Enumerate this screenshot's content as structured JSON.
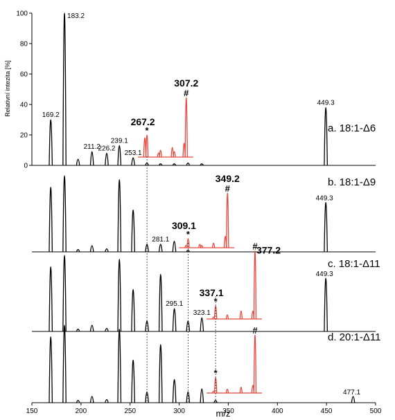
{
  "chart_data": {
    "type": "line",
    "xlabel": "m/z",
    "ylabel": "Relativní intezita [%]",
    "xlim": [
      150,
      500
    ],
    "ylim": [
      0,
      100
    ],
    "x_ticks": [
      "150",
      "200",
      "250",
      "300",
      "350",
      "400",
      "450",
      "500"
    ],
    "y_ticks": [
      "0",
      "20",
      "40",
      "60",
      "80",
      "100"
    ],
    "colors": {
      "main": "#000000",
      "inset": "#e8473c"
    },
    "series": [
      {
        "name": "a. 18:1-Δ6",
        "peaks": [
          [
            169.2,
            30
          ],
          [
            183.2,
            100
          ],
          [
            197,
            4
          ],
          [
            211.2,
            9
          ],
          [
            226.2,
            8
          ],
          [
            239.1,
            13
          ],
          [
            253.1,
            5
          ],
          [
            267.2,
            1.5
          ],
          [
            281,
            1
          ],
          [
            295,
            1
          ],
          [
            309,
            1.5
          ],
          [
            323,
            1
          ],
          [
            449.3,
            38
          ]
        ],
        "labels": [
          {
            "x": 169.2,
            "text": "169.2"
          },
          {
            "x": 183.2,
            "text": "183.2"
          },
          {
            "x": 211.2,
            "text": "211.2"
          },
          {
            "x": 226.2,
            "text": "226.2"
          },
          {
            "x": 239.1,
            "text": "239.1"
          },
          {
            "x": 253.1,
            "text": "253.1"
          },
          {
            "x": 449.3,
            "text": "449.3"
          }
        ],
        "inset": {
          "peaks": [
            [
              265,
              14
            ],
            [
              267.2,
              16
            ],
            [
              279,
              3
            ],
            [
              281,
              5
            ],
            [
              293,
              7
            ],
            [
              295,
              4
            ],
            [
              305,
              10
            ],
            [
              307.2,
              43
            ]
          ],
          "star": {
            "x": 267.2,
            "text": "267.2"
          },
          "hash": {
            "x": 307.2,
            "text": "307.2"
          }
        }
      },
      {
        "name": "b. 18:1-Δ9",
        "peaks": [
          [
            169.2,
            85
          ],
          [
            183.2,
            100
          ],
          [
            197,
            3
          ],
          [
            211.2,
            8
          ],
          [
            226.2,
            4
          ],
          [
            239.1,
            95
          ],
          [
            253.1,
            55
          ],
          [
            267.2,
            10
          ],
          [
            281.1,
            10
          ],
          [
            295,
            14
          ],
          [
            309,
            2
          ],
          [
            449.3,
            65
          ]
        ],
        "labels": [
          {
            "x": 281.1,
            "text": "281.1"
          },
          {
            "x": 449.3,
            "text": "449.3"
          }
        ],
        "inset": {
          "peaks": [
            [
              307,
              2
            ],
            [
              309.1,
              8
            ],
            [
              321,
              3
            ],
            [
              323,
              2
            ],
            [
              335,
              4
            ],
            [
              347,
              10
            ],
            [
              349.2,
              48
            ]
          ],
          "star": {
            "x": 309.1,
            "text": "309.1"
          },
          "hash": {
            "x": 349.2,
            "text": "349.2"
          }
        }
      },
      {
        "name": "c. 18:1-Δ11",
        "peaks": [
          [
            169.2,
            85
          ],
          [
            183.2,
            100
          ],
          [
            197,
            3
          ],
          [
            211.2,
            8
          ],
          [
            226.2,
            4
          ],
          [
            239.1,
            95
          ],
          [
            253.1,
            55
          ],
          [
            267.2,
            14
          ],
          [
            281.1,
            75
          ],
          [
            295.1,
            30
          ],
          [
            309,
            14
          ],
          [
            323.1,
            18
          ],
          [
            449.3,
            70
          ]
        ],
        "labels": [
          {
            "x": 295.1,
            "text": "295.1"
          },
          {
            "x": 323.1,
            "text": "323.1"
          },
          {
            "x": 449.3,
            "text": "449.3"
          }
        ],
        "inset": {
          "peaks": [
            [
              335,
              2
            ],
            [
              337.1,
              13
            ],
            [
              349,
              4
            ],
            [
              363,
              8
            ],
            [
              375,
              8
            ],
            [
              377.2,
              68
            ]
          ],
          "star": {
            "x": 337.1,
            "text": "337.1"
          },
          "hash": {
            "x": 377.2,
            "text": "377.2"
          }
        }
      },
      {
        "name": "d. 20:1-Δ11",
        "peaks": [
          [
            169.2,
            85
          ],
          [
            183.2,
            100
          ],
          [
            197,
            3
          ],
          [
            211.2,
            8
          ],
          [
            226.2,
            4
          ],
          [
            239.1,
            95
          ],
          [
            253.1,
            55
          ],
          [
            267.2,
            14
          ],
          [
            281.1,
            75
          ],
          [
            295.1,
            30
          ],
          [
            309,
            14
          ],
          [
            323.1,
            18
          ],
          [
            337,
            3
          ],
          [
            477.1,
            8
          ]
        ],
        "labels": [
          {
            "x": 477.1,
            "text": "477.1"
          }
        ],
        "inset": {
          "peaks": [
            [
              335,
              2
            ],
            [
              337.1,
              16
            ],
            [
              349,
              4
            ],
            [
              363,
              6
            ],
            [
              375,
              8
            ],
            [
              377.2,
              60
            ]
          ],
          "star": {
            "x": 337.1,
            "text": ""
          },
          "hash": {
            "x": 377.2,
            "text": ""
          }
        }
      }
    ],
    "guide_lines": [
      267.2,
      309.1,
      337.1
    ]
  }
}
